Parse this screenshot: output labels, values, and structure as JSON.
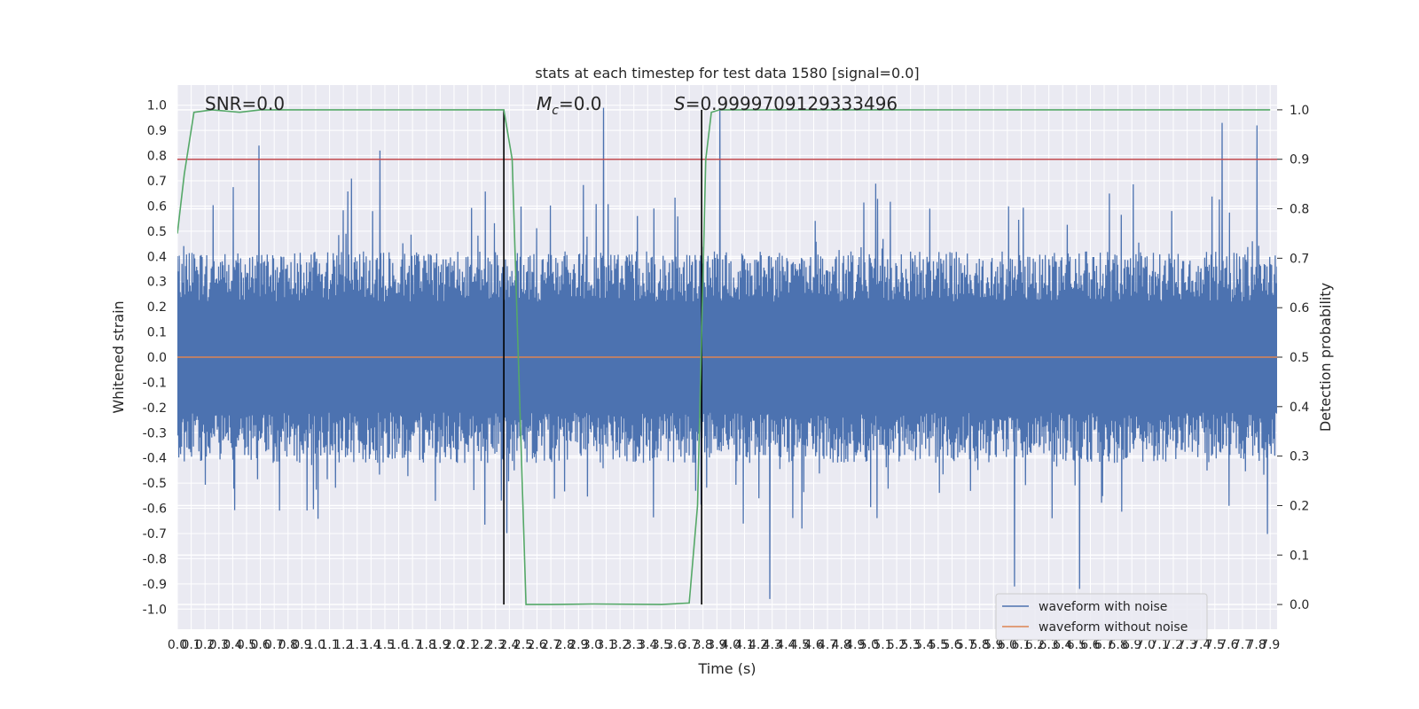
{
  "chart_data": {
    "type": "line",
    "title": "stats at each timestep for test data 1580 [signal=0.0]",
    "xlabel": "Time (s)",
    "ylabel": "Whitened strain",
    "y2label": "Detection probability",
    "xlim": [
      0.0,
      7.95
    ],
    "ylim": [
      -1.08,
      1.08
    ],
    "y2lim": [
      -0.05,
      1.05
    ],
    "x_ticks": [
      "0.0",
      "0.1",
      "0.2",
      "0.3",
      "0.4",
      "0.5",
      "0.6",
      "0.7",
      "0.8",
      "0.9",
      "1.0",
      "1.1",
      "1.2",
      "1.3",
      "1.4",
      "1.5",
      "1.6",
      "1.7",
      "1.8",
      "1.9",
      "2.0",
      "2.1",
      "2.2",
      "2.3",
      "2.4",
      "2.5",
      "2.6",
      "2.7",
      "2.8",
      "2.9",
      "3.0",
      "3.1",
      "3.2",
      "3.3",
      "3.4",
      "3.5",
      "3.6",
      "3.7",
      "3.8",
      "3.9",
      "4.0",
      "4.1",
      "4.2",
      "4.3",
      "4.4",
      "4.5",
      "4.6",
      "4.7",
      "4.8",
      "4.9",
      "5.0",
      "5.1",
      "5.2",
      "5.3",
      "5.4",
      "5.5",
      "5.6",
      "5.7",
      "5.8",
      "5.9",
      "6.0",
      "6.1",
      "6.2",
      "6.3",
      "6.4",
      "6.5",
      "6.6",
      "6.7",
      "6.8",
      "6.9",
      "7.0",
      "7.1",
      "7.2",
      "7.3",
      "7.4",
      "7.5",
      "7.6",
      "7.7",
      "7.8",
      "7.9"
    ],
    "y_ticks": [
      "-1.0",
      "-0.9",
      "-0.8",
      "-0.7",
      "-0.6",
      "-0.5",
      "-0.4",
      "-0.3",
      "-0.2",
      "-0.1",
      "0.0",
      "0.1",
      "0.2",
      "0.3",
      "0.4",
      "0.5",
      "0.6",
      "0.7",
      "0.8",
      "0.9",
      "1.0"
    ],
    "y2_ticks": [
      "0.0",
      "0.1",
      "0.2",
      "0.3",
      "0.4",
      "0.5",
      "0.6",
      "0.7",
      "0.8",
      "0.9",
      "1.0"
    ],
    "annotations": {
      "snr": "SNR=0.0",
      "mc_symbol": "M",
      "mc_sub": "c",
      "mc_value": "=0.0",
      "s_symbol": "S",
      "s_value": "=0.9999709129333496"
    },
    "threshold_y2": 0.9,
    "vlines_x": [
      2.36,
      3.79
    ],
    "series": [
      {
        "name": "waveform with noise",
        "color": "#4c72b0",
        "style": "dense noise, amplitude mostly within ±0.6 with peaks near ±1.0",
        "peaks": [
          {
            "x": 3.08,
            "y": 0.99
          },
          {
            "x": 3.92,
            "y": 0.98
          },
          {
            "x": 0.59,
            "y": 0.84
          },
          {
            "x": 1.46,
            "y": 0.82
          },
          {
            "x": 7.55,
            "y": 0.93
          },
          {
            "x": 7.8,
            "y": 0.92
          },
          {
            "x": 4.28,
            "y": -0.96
          },
          {
            "x": 6.52,
            "y": -0.92
          },
          {
            "x": 6.05,
            "y": -0.91
          }
        ]
      },
      {
        "name": "waveform without noise",
        "color": "#dd8452",
        "values_constant": 0.0
      },
      {
        "name": "",
        "color": "#55a868",
        "axis": "right",
        "points": [
          [
            0.0,
            0.75
          ],
          [
            0.05,
            0.87
          ],
          [
            0.12,
            0.995
          ],
          [
            0.25,
            1.0
          ],
          [
            0.45,
            0.995
          ],
          [
            0.6,
            1.0
          ],
          [
            1.0,
            1.0
          ],
          [
            2.0,
            1.0
          ],
          [
            2.36,
            1.0
          ],
          [
            2.42,
            0.9
          ],
          [
            2.52,
            0.0
          ],
          [
            2.7,
            0.0
          ],
          [
            3.0,
            0.001
          ],
          [
            3.5,
            0.0
          ],
          [
            3.7,
            0.003
          ],
          [
            3.76,
            0.2
          ],
          [
            3.82,
            0.9
          ],
          [
            3.86,
            0.995
          ],
          [
            3.92,
            1.0
          ],
          [
            5.0,
            1.0
          ],
          [
            6.0,
            1.0
          ],
          [
            7.0,
            1.0
          ],
          [
            7.9,
            1.0
          ]
        ]
      },
      {
        "name": "",
        "color": "#c44e52",
        "axis": "right",
        "values_constant": 0.9
      }
    ],
    "legend": {
      "placement": "lower-right",
      "entries": [
        {
          "label": "waveform with noise",
          "color": "#4c72b0"
        },
        {
          "label": "waveform without noise",
          "color": "#dd8452"
        }
      ]
    },
    "grid": true
  }
}
